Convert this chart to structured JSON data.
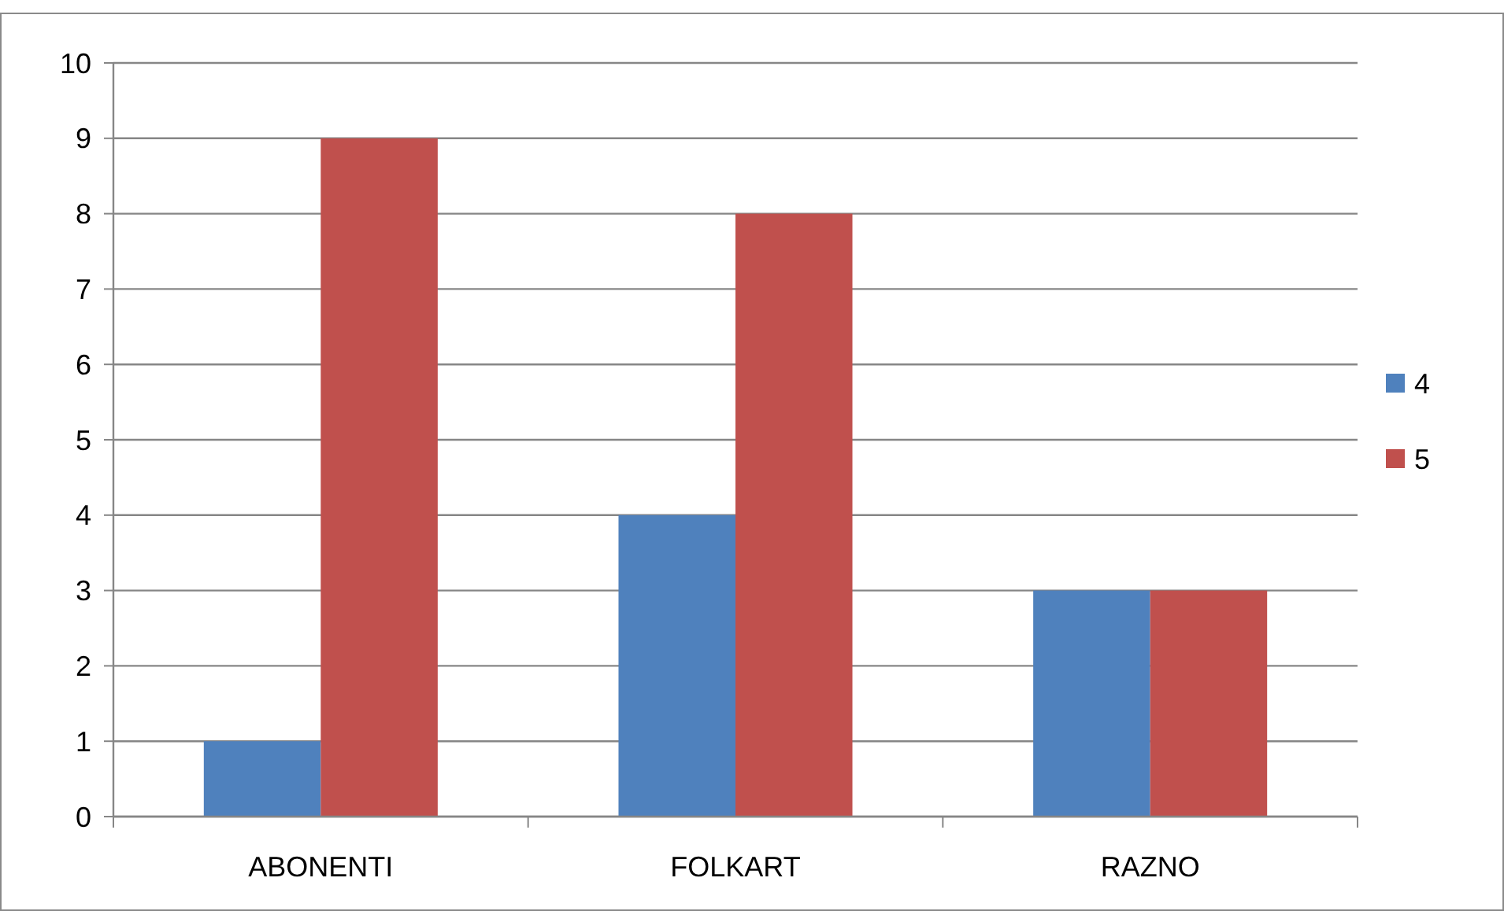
{
  "chart_data": {
    "type": "bar",
    "categories": [
      "ABONENTI",
      "FOLKART",
      "RAZNO"
    ],
    "series": [
      {
        "name": "4",
        "color": "#4f81bd",
        "values": [
          1,
          4,
          3
        ]
      },
      {
        "name": "5",
        "color": "#c0504d",
        "values": [
          9,
          8,
          3
        ]
      }
    ],
    "ylim": [
      0,
      10
    ],
    "yticks": [
      0,
      1,
      2,
      3,
      4,
      5,
      6,
      7,
      8,
      9,
      10
    ],
    "grid": "y",
    "legend": "right"
  }
}
